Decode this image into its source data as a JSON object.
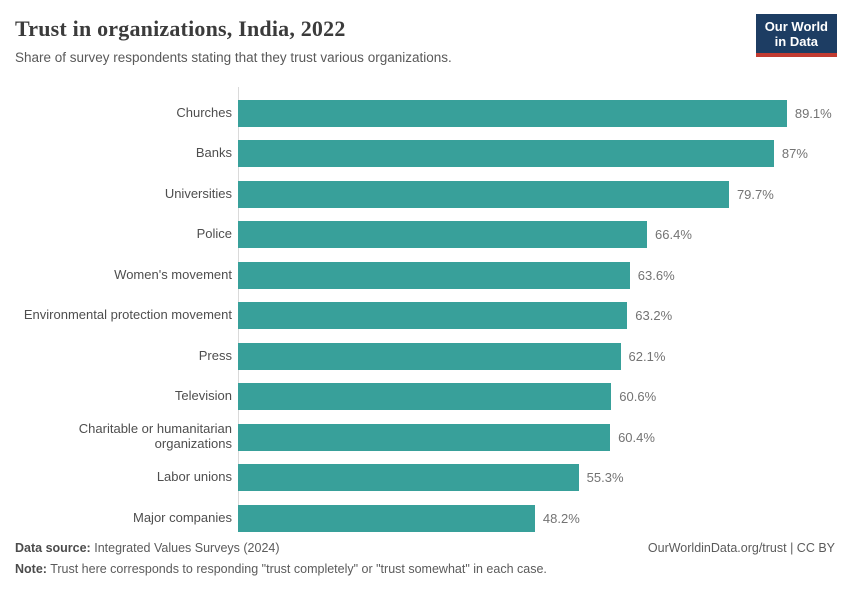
{
  "header": {
    "title": "Trust in organizations, India, 2022",
    "subtitle": "Share of survey respondents stating that they trust various organizations.",
    "logo": {
      "line1": "Our World",
      "line2": "in Data"
    }
  },
  "chart_data": {
    "type": "bar",
    "orientation": "horizontal",
    "title": "Trust in organizations, India, 2022",
    "subtitle": "Share of survey respondents stating that they trust various organizations.",
    "categories": [
      "Churches",
      "Banks",
      "Universities",
      "Police",
      "Women's movement",
      "Environmental protection movement",
      "Press",
      "Television",
      "Charitable or humanitarian organizations",
      "Labor unions",
      "Major companies"
    ],
    "values": [
      89.1,
      87,
      79.7,
      66.4,
      63.6,
      63.2,
      62.1,
      60.6,
      60.4,
      55.3,
      48.2
    ],
    "value_labels": [
      "89.1%",
      "87%",
      "79.7%",
      "66.4%",
      "63.6%",
      "63.2%",
      "62.1%",
      "60.6%",
      "60.4%",
      "55.3%",
      "48.2%"
    ],
    "xlabel": "",
    "ylabel": "",
    "xlim": [
      0,
      100
    ],
    "unit": "%",
    "grid": false,
    "legend": false,
    "bar_color": "#38a09a"
  },
  "footer": {
    "datasource_label": "Data source:",
    "datasource_value": "Integrated Values Surveys (2024)",
    "link": "OurWorldinData.org/trust | CC BY",
    "note_label": "Note:",
    "note_value": "Trust here corresponds to responding \"trust completely\" or \"trust somewhat\" in each case."
  }
}
